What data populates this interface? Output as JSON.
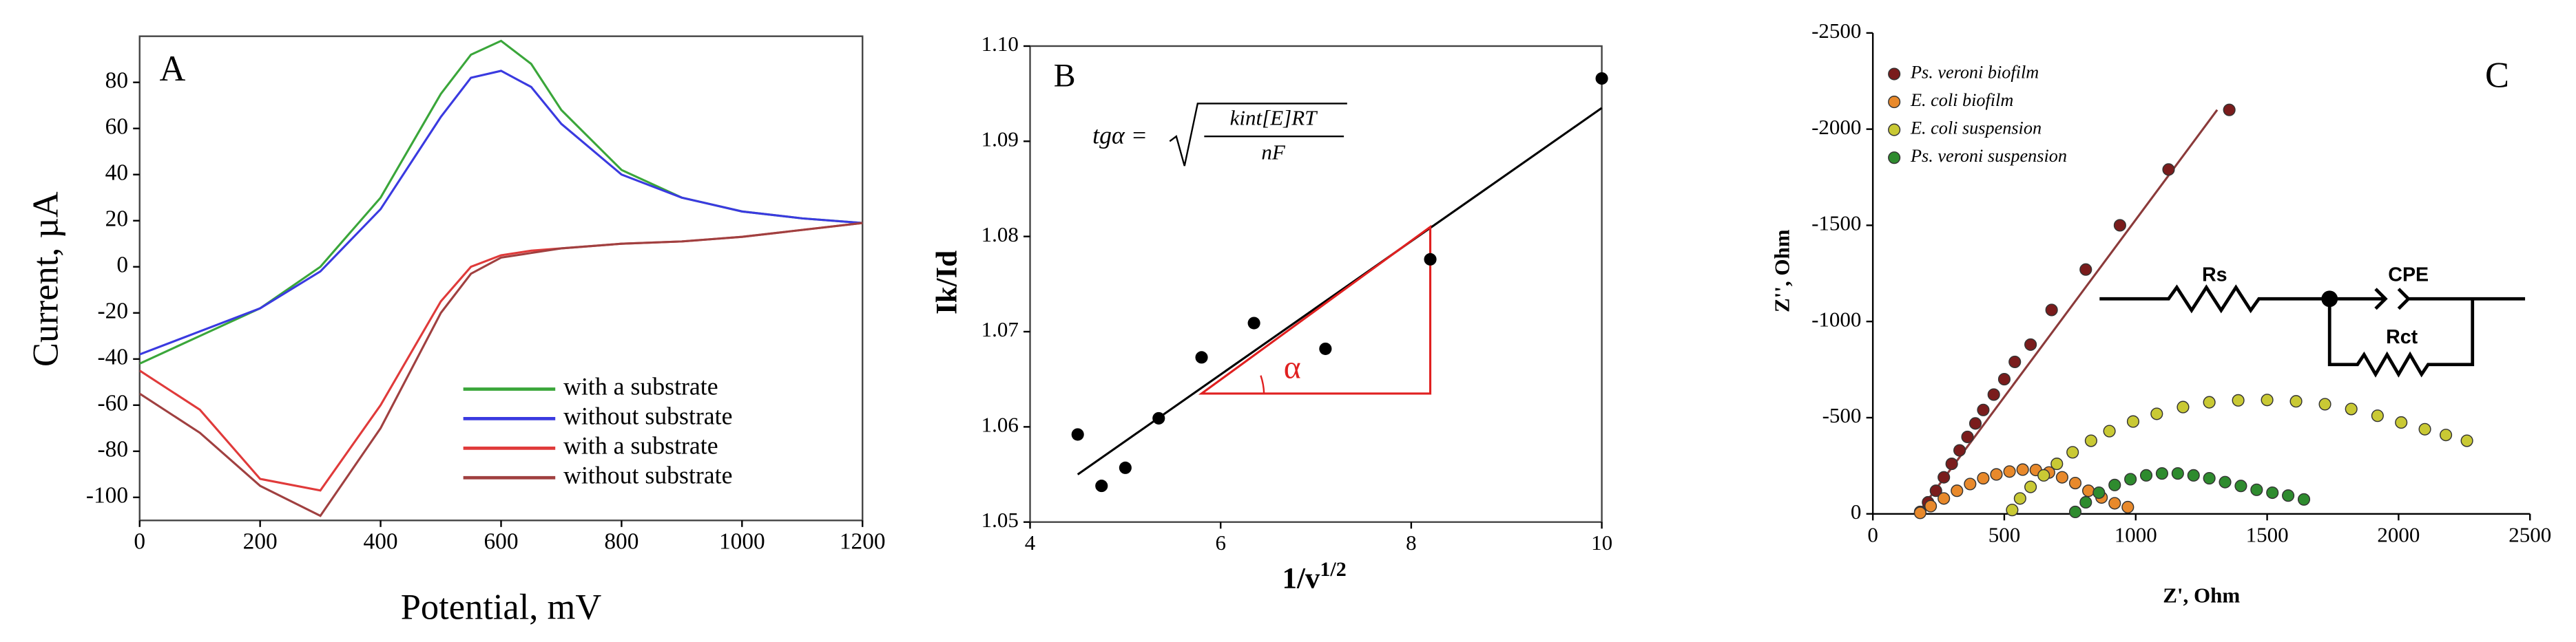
{
  "chart_data": [
    {
      "type": "line",
      "panel": "A",
      "x_label": "Potential, mV",
      "y_label": "Current, µA",
      "x": [
        0,
        100,
        200,
        300,
        400,
        500,
        550,
        600,
        650,
        700,
        800,
        900,
        1000,
        1100,
        1200
      ],
      "series": [
        {
          "name": "with a substrate",
          "color": "#3aa63a",
          "values": [
            -42,
            -30,
            -18,
            0,
            30,
            75,
            92,
            98,
            88,
            68,
            42,
            30,
            24,
            21,
            19
          ]
        },
        {
          "name": "without substrate",
          "color": "#3a3ae0",
          "values": [
            -38,
            -28,
            -18,
            -2,
            25,
            65,
            82,
            85,
            78,
            62,
            40,
            30,
            24,
            21,
            19
          ]
        },
        {
          "name": "with a substrate",
          "color": "#e03a3a",
          "values": [
            -45,
            -62,
            -92,
            -97,
            -60,
            -15,
            0,
            5,
            7,
            8,
            10,
            11,
            13,
            16,
            19
          ]
        },
        {
          "name": "without substrate",
          "color": "#a04040",
          "values": [
            -55,
            -72,
            -95,
            -108,
            -70,
            -20,
            -3,
            4,
            6,
            8,
            10,
            11,
            13,
            16,
            19
          ]
        }
      ],
      "xlim": [
        0,
        1200
      ],
      "ylim": [
        -110,
        100
      ],
      "xticks": [
        0,
        200,
        400,
        600,
        800,
        1000,
        1200
      ],
      "yticks": [
        -100,
        -80,
        -60,
        -40,
        -20,
        0,
        20,
        40,
        60,
        80
      ],
      "legend": "lower right"
    },
    {
      "type": "scatter",
      "panel": "B",
      "x_label": "1/v",
      "x_label_sup": "1/2",
      "y_label": "Ik/Id",
      "series": [
        {
          "color": "#000000",
          "x": [
            4.5,
            4.75,
            5.0,
            5.35,
            5.8,
            6.35,
            7.1,
            8.2,
            10.0
          ],
          "values": [
            1.0592,
            1.0538,
            1.0557,
            1.0609,
            1.0673,
            1.0709,
            1.0682,
            1.0776,
            1.0966
          ]
        }
      ],
      "fit_line": {
        "x": [
          4.5,
          10
        ],
        "y": [
          1.055,
          1.0935
        ],
        "color": "#000000"
      },
      "triangle": {
        "x": [
          5.8,
          8.2,
          8.2
        ],
        "y": [
          1.0635,
          1.081,
          1.0635
        ],
        "color": "#e02020"
      },
      "angle_label": "α",
      "formula": {
        "lhs": "tgα =",
        "numerator": "kint[E]RT",
        "denominator": "nF"
      },
      "xlim": [
        4,
        10
      ],
      "ylim": [
        1.05,
        1.1
      ],
      "xticks": [
        4,
        6,
        8,
        10
      ],
      "yticks": [
        1.05,
        1.06,
        1.07,
        1.08,
        1.09,
        {
          "value": 1.1,
          "label": "1.10"
        }
      ]
    },
    {
      "type": "scatter",
      "panel": "C",
      "x_label": "Z', Ohm",
      "y_label": "Z'', Ohm",
      "series": [
        {
          "name": "Ps. veroni biofilm",
          "color": "#7a1c1c",
          "x": [
            180,
            210,
            240,
            270,
            300,
            330,
            360,
            390,
            420,
            460,
            500,
            540,
            600,
            680,
            810,
            940,
            1125,
            1356
          ],
          "values": [
            -10,
            -60,
            -120,
            -190,
            -260,
            -330,
            -400,
            -470,
            -540,
            -620,
            -700,
            -790,
            -880,
            -1060,
            -1270,
            -1500,
            -1790,
            -2100
          ]
        },
        {
          "name": "E. coli biofilm",
          "color": "#e8892b",
          "x": [
            180,
            220,
            270,
            320,
            370,
            420,
            470,
            520,
            570,
            620,
            670,
            720,
            770,
            820,
            870,
            920,
            970
          ],
          "values": [
            -5,
            -40,
            -80,
            -120,
            -155,
            -185,
            -205,
            -220,
            -230,
            -228,
            -215,
            -190,
            -160,
            -120,
            -85,
            -55,
            -35
          ]
        },
        {
          "name": "E. coli suspension",
          "color": "#c9c934",
          "x": [
            530,
            560,
            600,
            650,
            700,
            760,
            830,
            900,
            990,
            1080,
            1180,
            1280,
            1390,
            1500,
            1610,
            1720,
            1820,
            1920,
            2010,
            2100,
            2180,
            2260
          ],
          "values": [
            -20,
            -80,
            -140,
            -200,
            -260,
            -320,
            -380,
            -430,
            -480,
            -520,
            -555,
            -580,
            -590,
            -592,
            -585,
            -570,
            -545,
            -510,
            -475,
            -440,
            -410,
            -380
          ]
        },
        {
          "name": "Ps. veroni suspension",
          "color": "#2e8b2e",
          "x": [
            770,
            810,
            860,
            920,
            980,
            1040,
            1100,
            1160,
            1220,
            1280,
            1340,
            1400,
            1460,
            1520,
            1580,
            1640
          ],
          "values": [
            -10,
            -60,
            -110,
            -150,
            -180,
            -200,
            -210,
            -210,
            -200,
            -185,
            -165,
            -145,
            -125,
            -110,
            -95,
            -75
          ]
        }
      ],
      "fit_line": {
        "x": [
          170,
          1310
        ],
        "y": [
          0,
          -2100
        ],
        "color": "#8b3a3a"
      },
      "circuit_labels": [
        "Rs",
        "CPE",
        "Rct"
      ],
      "xlim": [
        0,
        2500
      ],
      "ylim": [
        0,
        -2500
      ],
      "xticks": [
        0,
        500,
        1000,
        1500,
        2000,
        2500
      ],
      "yticks": [
        0,
        -500,
        -1000,
        -1500,
        -2000,
        -2500
      ],
      "legend": "upper left"
    }
  ]
}
